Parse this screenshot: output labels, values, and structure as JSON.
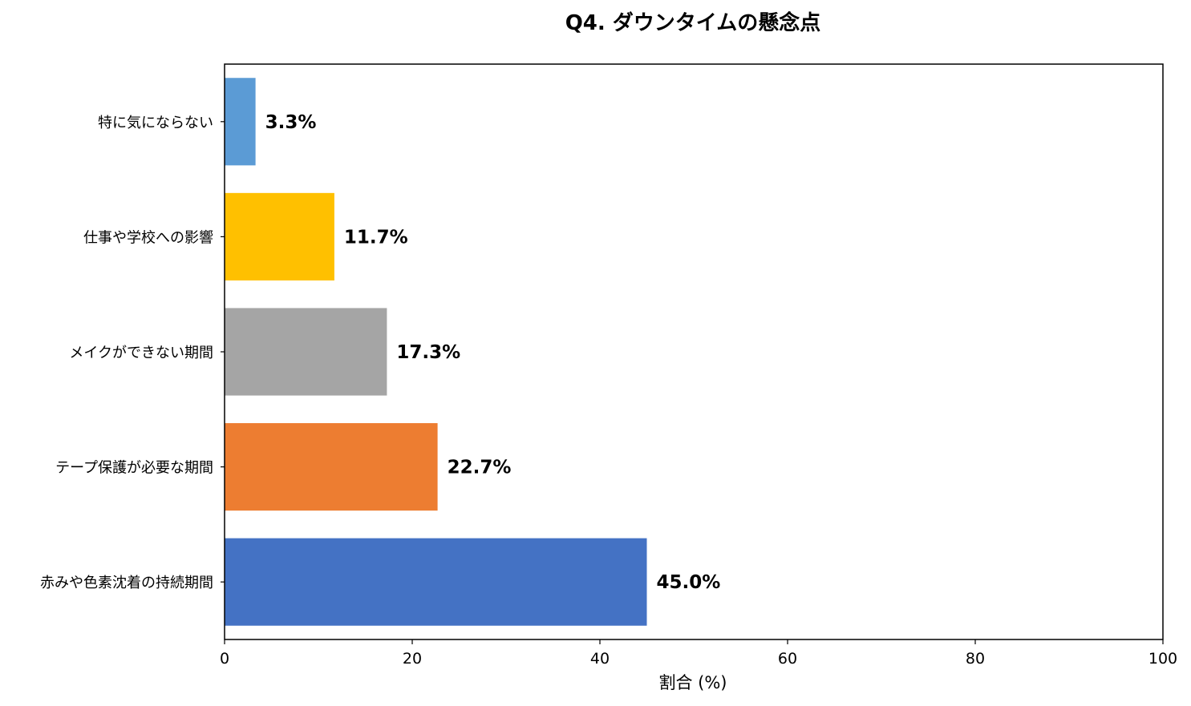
{
  "chart_data": {
    "type": "bar",
    "orientation": "horizontal",
    "title": "Q4. ダウンタイムの懸念点",
    "xlabel": "割合 (%)",
    "ylabel": "",
    "xlim": [
      0,
      100
    ],
    "xticks": [
      0,
      20,
      40,
      60,
      80,
      100
    ],
    "grid": false,
    "categories": [
      "特に気にならない",
      "仕事や学校への影響",
      "メイクができない期間",
      "テープ保護が必要な期間",
      "赤みや色素沈着の持続期間"
    ],
    "values": [
      3.3,
      11.7,
      17.3,
      22.7,
      45.0
    ],
    "data_labels": [
      "3.3%",
      "11.7%",
      "17.3%",
      "22.7%",
      "45.0%"
    ],
    "colors": [
      "#5b9bd5",
      "#ffc000",
      "#a5a5a5",
      "#ed7d31",
      "#4472c4"
    ]
  }
}
